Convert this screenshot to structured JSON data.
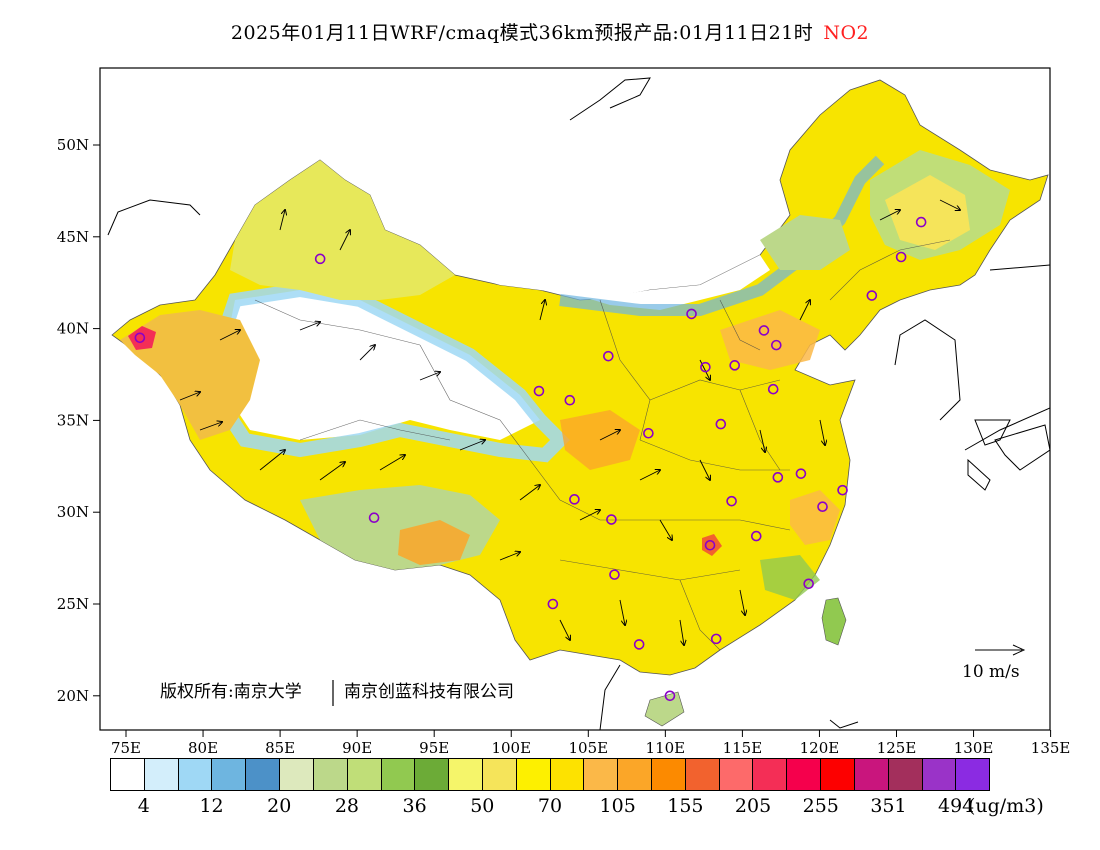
{
  "title": {
    "main": "2025年01月11日WRF/cmaq模式36km预报产品:01月11日21时",
    "pollutant": "NO2"
  },
  "axes": {
    "lat_labels": [
      "50N",
      "45N",
      "40N",
      "35N",
      "30N",
      "25N",
      "20N"
    ],
    "lon_labels": [
      "75E",
      "80E",
      "85E",
      "90E",
      "95E",
      "100E",
      "105E",
      "110E",
      "115E",
      "120E",
      "125E",
      "130E",
      "135E"
    ]
  },
  "copyright": {
    "left": "版权所有:南京大学",
    "right": "南京创蓝科技有限公司"
  },
  "wind_reference": {
    "label": "10 m/s"
  },
  "colorbar": {
    "unit": "(ug/m3)",
    "colors": [
      "#ffffff",
      "#d3eefb",
      "#9fd8f5",
      "#6eb5e0",
      "#4c91c8",
      "#dde9bd",
      "#bcd88a",
      "#c0de78",
      "#91c950",
      "#6cab37",
      "#f5f56a",
      "#f5e45a",
      "#fdf000",
      "#fde200",
      "#fbb848",
      "#fba628",
      "#fc8a00",
      "#f2622e",
      "#fd6a6a",
      "#f42e56",
      "#f5004c",
      "#fd0000",
      "#c9157d",
      "#a32f5c",
      "#9a33c8",
      "#8b2be2"
    ],
    "labels": [
      "4",
      "12",
      "20",
      "28",
      "36",
      "50",
      "70",
      "105",
      "155",
      "205",
      "255",
      "351",
      "494"
    ]
  },
  "stations": [
    [
      87.6,
      43.8
    ],
    [
      75.9,
      39.5
    ],
    [
      91.1,
      29.7
    ],
    [
      101.8,
      36.6
    ],
    [
      103.8,
      36.1
    ],
    [
      106.3,
      38.5
    ],
    [
      111.7,
      40.8
    ],
    [
      112.6,
      37.9
    ],
    [
      114.5,
      38.0
    ],
    [
      116.4,
      39.9
    ],
    [
      117.2,
      39.1
    ],
    [
      117.0,
      36.7
    ],
    [
      113.6,
      34.8
    ],
    [
      108.9,
      34.3
    ],
    [
      104.1,
      30.7
    ],
    [
      106.5,
      29.6
    ],
    [
      106.7,
      26.6
    ],
    [
      102.7,
      25.0
    ],
    [
      108.3,
      22.8
    ],
    [
      110.3,
      20.0
    ],
    [
      113.3,
      23.1
    ],
    [
      112.9,
      28.2
    ],
    [
      114.3,
      30.6
    ],
    [
      115.9,
      28.7
    ],
    [
      117.3,
      31.9
    ],
    [
      118.8,
      32.1
    ],
    [
      120.2,
      30.3
    ],
    [
      121.5,
      31.2
    ],
    [
      119.3,
      26.1
    ],
    [
      123.4,
      41.8
    ],
    [
      125.3,
      43.9
    ],
    [
      126.6,
      45.8
    ]
  ]
}
